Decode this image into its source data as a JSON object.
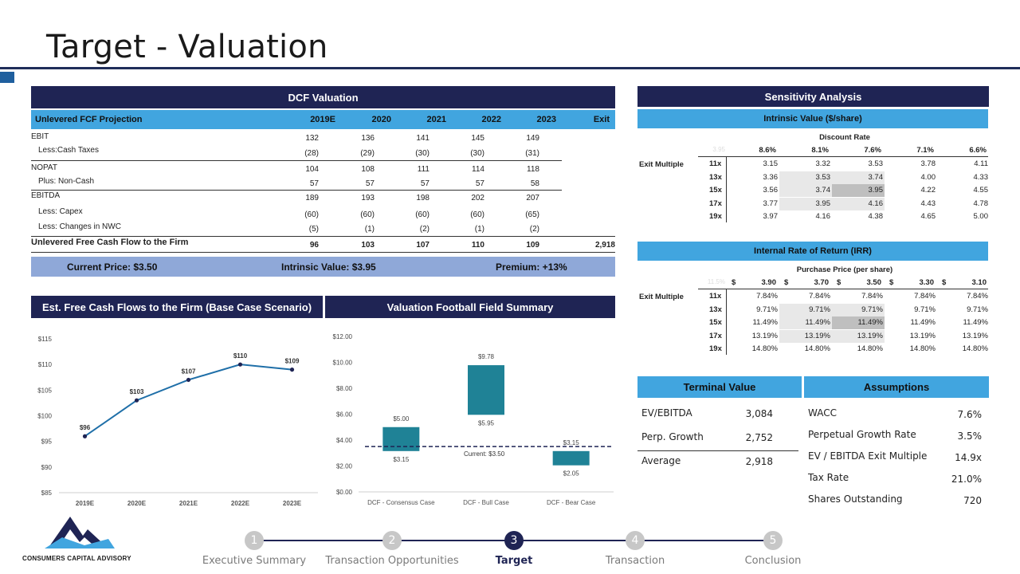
{
  "page": {
    "title": "Target - Valuation"
  },
  "dcf": {
    "header": "DCF Valuation",
    "subheader": "Unlevered FCF Projection",
    "years": [
      "2019E",
      "2020",
      "2021",
      "2022",
      "2023",
      "Exit"
    ],
    "rows": [
      {
        "label": "EBIT",
        "values": [
          "132",
          "136",
          "141",
          "145",
          "149",
          ""
        ]
      },
      {
        "label": "Less:Cash Taxes",
        "values": [
          "(28)",
          "(29)",
          "(30)",
          "(30)",
          "(31)",
          ""
        ]
      },
      {
        "label": "NOPAT",
        "values": [
          "104",
          "108",
          "111",
          "114",
          "118",
          ""
        ]
      },
      {
        "label": "Plus: Non-Cash",
        "values": [
          "57",
          "57",
          "57",
          "57",
          "58",
          ""
        ]
      },
      {
        "label": "EBITDA",
        "values": [
          "189",
          "193",
          "198",
          "202",
          "207",
          ""
        ]
      },
      {
        "label": "Less: Capex",
        "values": [
          "(60)",
          "(60)",
          "(60)",
          "(60)",
          "(65)",
          ""
        ]
      },
      {
        "label": "Less: Changes in NWC",
        "values": [
          "(5)",
          "(1)",
          "(2)",
          "(1)",
          "(2)",
          ""
        ]
      },
      {
        "label": "Unlevered Free Cash Flow to the Firm",
        "values": [
          "96",
          "103",
          "107",
          "110",
          "109",
          "2,918"
        ]
      }
    ],
    "current_price": "Current Price: $3.50",
    "intrinsic_value": "Intrinsic Value: $3.95",
    "premium": "Premium: +13%"
  },
  "sensitivity": {
    "header": "Sensitivity Analysis",
    "intrinsic": {
      "title": "Intrinsic Value ($/share)",
      "col_title": "Discount Rate",
      "row_title": "Exit Multiple",
      "corner": "3.95",
      "cols": [
        "8.6%",
        "8.1%",
        "7.6%",
        "7.1%",
        "6.6%"
      ],
      "rows": [
        {
          "label": "11x",
          "values": [
            "3.15",
            "3.32",
            "3.53",
            "3.78",
            "4.11"
          ]
        },
        {
          "label": "13x",
          "values": [
            "3.36",
            "3.53",
            "3.74",
            "4.00",
            "4.33"
          ]
        },
        {
          "label": "15x",
          "values": [
            "3.56",
            "3.74",
            "3.95",
            "4.22",
            "4.55"
          ]
        },
        {
          "label": "17x",
          "values": [
            "3.77",
            "3.95",
            "4.16",
            "4.43",
            "4.78"
          ]
        },
        {
          "label": "19x",
          "values": [
            "3.97",
            "4.16",
            "4.38",
            "4.65",
            "5.00"
          ]
        }
      ]
    },
    "irr": {
      "title": "Internal Rate of Return (IRR)",
      "col_title": "Purchase Price (per share)",
      "row_title": "Exit Multiple",
      "corner": "11.5%",
      "currency": "$",
      "cols": [
        "3.90",
        "3.70",
        "3.50",
        "3.30",
        "3.10"
      ],
      "rows": [
        {
          "label": "11x",
          "values": [
            "7.84%",
            "7.84%",
            "7.84%",
            "7.84%",
            "7.84%"
          ]
        },
        {
          "label": "13x",
          "values": [
            "9.71%",
            "9.71%",
            "9.71%",
            "9.71%",
            "9.71%"
          ]
        },
        {
          "label": "15x",
          "values": [
            "11.49%",
            "11.49%",
            "11.49%",
            "11.49%",
            "11.49%"
          ]
        },
        {
          "label": "17x",
          "values": [
            "13.19%",
            "13.19%",
            "13.19%",
            "13.19%",
            "13.19%"
          ]
        },
        {
          "label": "19x",
          "values": [
            "14.80%",
            "14.80%",
            "14.80%",
            "14.80%",
            "14.80%"
          ]
        }
      ]
    }
  },
  "terminal_value": {
    "header": "Terminal Value",
    "rows": [
      {
        "label": "EV/EBITDA",
        "value": "3,084"
      },
      {
        "label": "Perp. Growth",
        "value": "2,752"
      },
      {
        "label": "Average",
        "value": "2,918"
      }
    ]
  },
  "assumptions": {
    "header": "Assumptions",
    "rows": [
      {
        "label": "WACC",
        "value": "7.6%"
      },
      {
        "label": "Perpetual Growth Rate",
        "value": "3.5%"
      },
      {
        "label": "EV / EBITDA Exit Multiple",
        "value": "14.9x"
      },
      {
        "label": "Tax Rate",
        "value": "21.0%"
      },
      {
        "label": "Shares Outstanding",
        "value": "720"
      }
    ]
  },
  "fcf_chart_header": "Est. Free Cash Flows to the Firm (Base Case Scenario)",
  "football_header": "Valuation Football Field Summary",
  "chart_data": [
    {
      "type": "line",
      "categories": [
        "2019E",
        "2020E",
        "2021E",
        "2022E",
        "2023E"
      ],
      "values": [
        96,
        103,
        107,
        110,
        109
      ],
      "data_labels": [
        "$96",
        "$103",
        "$107",
        "$110",
        "$109"
      ],
      "y_ticks": [
        "$85",
        "$90",
        "$95",
        "$100",
        "$105",
        "$110",
        "$115"
      ],
      "ylim": [
        85,
        115
      ],
      "color": "#1f6fa8"
    },
    {
      "type": "bar",
      "categories": [
        "DCF - Consensus Case",
        "DCF - Bull Case",
        "DCF - Bear Case"
      ],
      "low": [
        3.15,
        5.95,
        2.05
      ],
      "high": [
        5.0,
        9.78,
        3.15
      ],
      "low_labels": [
        "$3.15",
        "$5.95",
        "$2.05"
      ],
      "high_labels": [
        "$5.00",
        "$9.78",
        "$3.15"
      ],
      "y_ticks": [
        "$0.00",
        "$2.00",
        "$4.00",
        "$6.00",
        "$8.00",
        "$10.00",
        "$12.00"
      ],
      "ylim": [
        0,
        12
      ],
      "reference_line": 3.5,
      "reference_label": "Current: $3.50",
      "color": "#1f8296"
    }
  ],
  "logo": {
    "text": "CONSUMERS CAPITAL ADVISORY"
  },
  "nav": {
    "steps": [
      {
        "num": "1",
        "label": "Executive Summary"
      },
      {
        "num": "2",
        "label": "Transaction Opportunities"
      },
      {
        "num": "3",
        "label": "Target"
      },
      {
        "num": "4",
        "label": "Transaction"
      },
      {
        "num": "5",
        "label": "Conclusion"
      }
    ]
  }
}
